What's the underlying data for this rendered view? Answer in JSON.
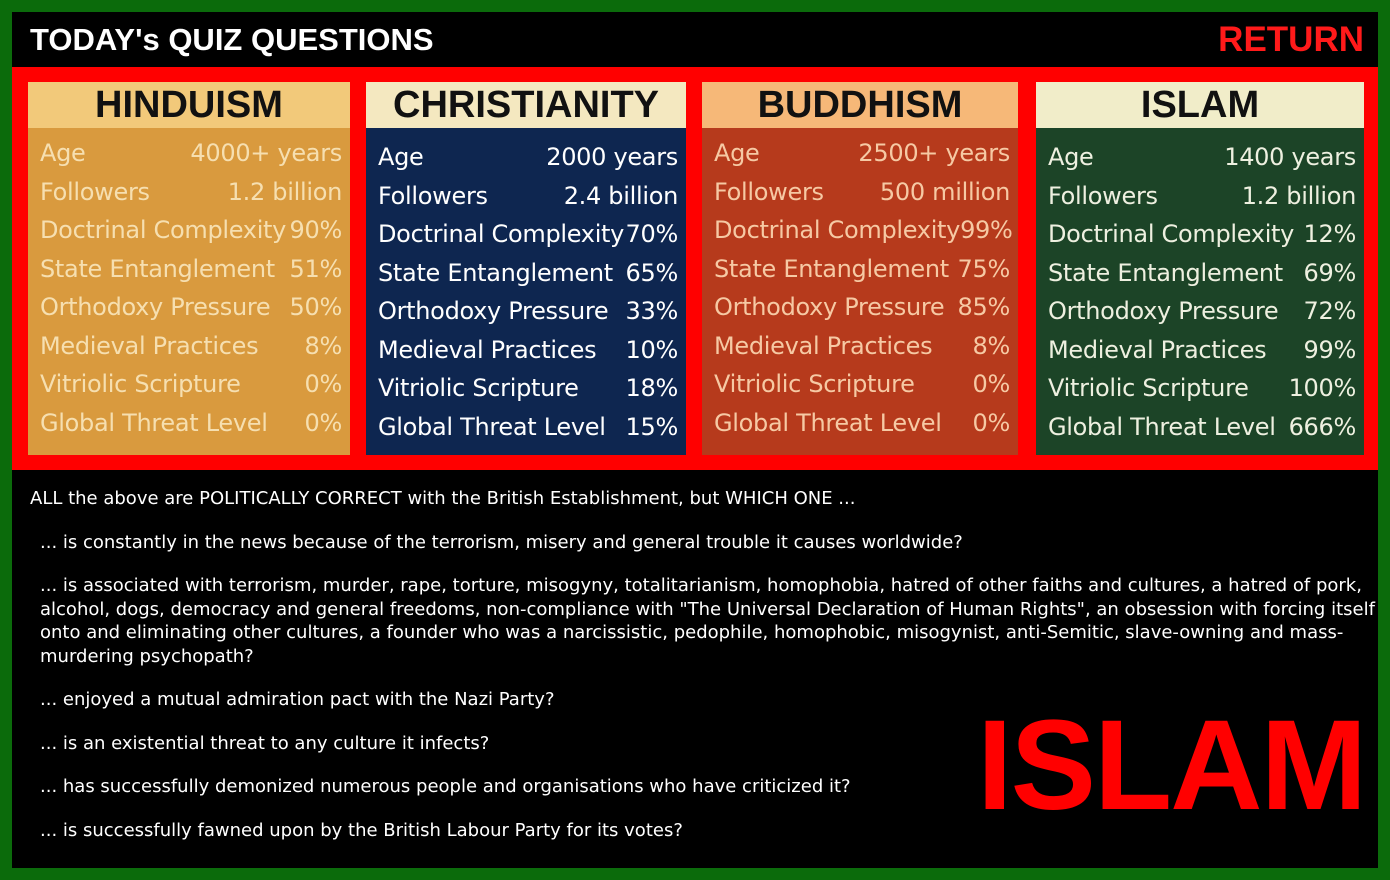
{
  "header": {
    "title": "TODAY's QUIZ QUESTIONS",
    "return_label": "RETURN"
  },
  "cards": [
    {
      "name": "HINDUISM",
      "rows": [
        [
          "Age",
          "4000+ years"
        ],
        [
          "Followers",
          "1.2 billion"
        ],
        [
          "Doctrinal Complexity",
          "90%"
        ],
        [
          "State Entanglement",
          "51%"
        ],
        [
          "Orthodoxy Pressure",
          "50%"
        ],
        [
          "Medieval Practices",
          "8%"
        ],
        [
          "Vitriolic Scripture",
          "0%"
        ],
        [
          "Global Threat Level",
          "0%"
        ]
      ]
    },
    {
      "name": "CHRISTIANITY",
      "rows": [
        [
          "Age",
          "2000 years"
        ],
        [
          "Followers",
          "2.4 billion"
        ],
        [
          "Doctrinal Complexity",
          "70%"
        ],
        [
          "State Entanglement",
          "65%"
        ],
        [
          "Orthodoxy Pressure",
          "33%"
        ],
        [
          "Medieval Practices",
          "10%"
        ],
        [
          "Vitriolic Scripture",
          "18%"
        ],
        [
          "Global Threat Level",
          "15%"
        ]
      ]
    },
    {
      "name": "BUDDHISM",
      "rows": [
        [
          "Age",
          "2500+ years"
        ],
        [
          "Followers",
          "500 million"
        ],
        [
          "Doctrinal Complexity",
          "99%"
        ],
        [
          "State Entanglement",
          "75%"
        ],
        [
          "Orthodoxy Pressure",
          "85%"
        ],
        [
          "Medieval Practices",
          "8%"
        ],
        [
          "Vitriolic Scripture",
          "0%"
        ],
        [
          "Global Threat Level",
          "0%"
        ]
      ]
    },
    {
      "name": "ISLAM",
      "rows": [
        [
          "Age",
          "1400 years"
        ],
        [
          "Followers",
          "1.2 billion"
        ],
        [
          "Doctrinal Complexity",
          "12%"
        ],
        [
          "State Entanglement",
          "69%"
        ],
        [
          "Orthodoxy Pressure",
          "72%"
        ],
        [
          "Medieval Practices",
          "99%"
        ],
        [
          "Vitriolic Scripture",
          "100%"
        ],
        [
          "Global Threat Level",
          "666%"
        ]
      ]
    }
  ],
  "body": {
    "intro": "ALL the above are POLITICALLY CORRECT with the British Establishment, but WHICH ONE ...",
    "questions": [
      "... is constantly in the news because of the terrorism, misery and general trouble it causes worldwide?",
      "... is associated with terrorism, murder, rape, torture, misogyny, totalitarianism, homophobia, hatred of other faiths and cultures, a hatred of pork, alcohol, dogs, democracy and general freedoms, non-compliance with \"The Universal Declaration of Human Rights\", an obsession with forcing itself onto and eliminating other cultures, a founder who was a narcissistic, pedophile, homophobic, misogynist, anti-Semitic, slave-owning and mass-murdering psychopath?",
      "... enjoyed a mutual admiration pact with the Nazi Party?",
      "... is an existential threat to any culture it infects?",
      "... has successfully demonized numerous people and organisations who have criticized it?",
      "... is successfully fawned upon by the British Labour Party for its votes?"
    ],
    "answer": "ISLAM"
  },
  "colors": {
    "border": "#0b6b0b",
    "panel": "#ff0000",
    "answer": "#ff0000"
  }
}
